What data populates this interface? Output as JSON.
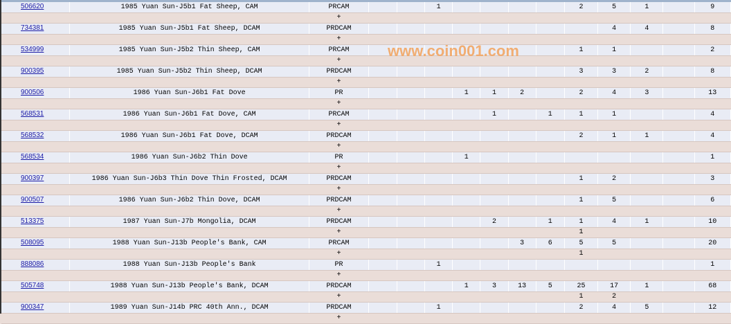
{
  "watermark": "www.coin001.com",
  "plus_label": "+",
  "rows": [
    {
      "id": "506620",
      "desc": "1985 Yuan Sun-J5b1 Fat Sheep, CAM",
      "desig": "PRCAM",
      "grades": [
        null,
        null,
        "1",
        null,
        null,
        null,
        null,
        "2",
        "5",
        "1",
        null
      ],
      "total": "9",
      "plus": []
    },
    {
      "id": "734381",
      "desc": "1985 Yuan Sun-J5b1 Fat Sheep, DCAM",
      "desig": "PRDCAM",
      "grades": [
        null,
        null,
        null,
        null,
        null,
        null,
        null,
        null,
        "4",
        "4",
        null
      ],
      "total": "8",
      "plus": []
    },
    {
      "id": "534999",
      "desc": "1985 Yuan Sun-J5b2 Thin Sheep, CAM",
      "desig": "PRCAM",
      "grades": [
        null,
        null,
        null,
        null,
        null,
        null,
        null,
        "1",
        "1",
        null,
        null
      ],
      "total": "2",
      "plus": []
    },
    {
      "id": "900395",
      "desc": "1985 Yuan Sun-J5b2 Thin Sheep, DCAM",
      "desig": "PRDCAM",
      "grades": [
        null,
        null,
        null,
        null,
        null,
        null,
        null,
        "3",
        "3",
        "2",
        null
      ],
      "total": "8",
      "plus": []
    },
    {
      "id": "900506",
      "desc": "1986 Yuan Sun-J6b1 Fat Dove",
      "desig": "PR",
      "grades": [
        null,
        null,
        null,
        "1",
        "1",
        "2",
        null,
        "2",
        "4",
        "3",
        null
      ],
      "total": "13",
      "plus": []
    },
    {
      "id": "568531",
      "desc": "1986 Yuan Sun-J6b1 Fat Dove, CAM",
      "desig": "PRCAM",
      "grades": [
        null,
        null,
        null,
        null,
        "1",
        null,
        "1",
        "1",
        "1",
        null,
        null
      ],
      "total": "4",
      "plus": []
    },
    {
      "id": "568532",
      "desc": "1986 Yuan Sun-J6b1 Fat Dove, DCAM",
      "desig": "PRDCAM",
      "grades": [
        null,
        null,
        null,
        null,
        null,
        null,
        null,
        "2",
        "1",
        "1",
        null
      ],
      "total": "4",
      "plus": []
    },
    {
      "id": "568534",
      "desc": "1986 Yuan Sun-J6b2 Thin Dove",
      "desig": "PR",
      "grades": [
        null,
        null,
        null,
        "1",
        null,
        null,
        null,
        null,
        null,
        null,
        null
      ],
      "total": "1",
      "plus": []
    },
    {
      "id": "900397",
      "desc": "1986 Yuan Sun-J6b3 Thin Dove Thin Frosted, DCAM",
      "desig": "PRDCAM",
      "grades": [
        null,
        null,
        null,
        null,
        null,
        null,
        null,
        "1",
        "2",
        null,
        null
      ],
      "total": "3",
      "plus": []
    },
    {
      "id": "900507",
      "desc": "1986 Yuan Sun-J6b2 Thin Dove, DCAM",
      "desig": "PRDCAM",
      "grades": [
        null,
        null,
        null,
        null,
        null,
        null,
        null,
        "1",
        "5",
        null,
        null
      ],
      "total": "6",
      "plus": []
    },
    {
      "id": "513375",
      "desc": "1987 Yuan Sun-J7b Mongolia, DCAM",
      "desig": "PRDCAM",
      "grades": [
        null,
        null,
        null,
        null,
        "2",
        null,
        "1",
        "1",
        "4",
        "1",
        null
      ],
      "total": "10",
      "plus": [
        null,
        null,
        null,
        null,
        null,
        null,
        null,
        "1",
        null,
        null,
        null
      ]
    },
    {
      "id": "508095",
      "desc": "1988 Yuan Sun-J13b People's Bank, CAM",
      "desig": "PRCAM",
      "grades": [
        null,
        null,
        null,
        null,
        null,
        "3",
        "6",
        "5",
        "5",
        null,
        null
      ],
      "total": "20",
      "plus": [
        null,
        null,
        null,
        null,
        null,
        null,
        null,
        "1",
        null,
        null,
        null
      ]
    },
    {
      "id": "888086",
      "desc": "1988 Yuan Sun-J13b People's Bank",
      "desig": "PR",
      "grades": [
        null,
        null,
        "1",
        null,
        null,
        null,
        null,
        null,
        null,
        null,
        null
      ],
      "total": "1",
      "plus": []
    },
    {
      "id": "505748",
      "desc": "1988 Yuan Sun-J13b People's Bank, DCAM",
      "desig": "PRDCAM",
      "grades": [
        null,
        null,
        null,
        "1",
        "3",
        "13",
        "5",
        "25",
        "17",
        "1",
        null
      ],
      "total": "68",
      "plus": [
        null,
        null,
        null,
        null,
        null,
        null,
        null,
        "1",
        "2",
        null,
        null
      ]
    },
    {
      "id": "900347",
      "desc": "1989 Yuan Sun-J14b PRC 40th Ann., DCAM",
      "desig": "PRDCAM",
      "grades": [
        null,
        null,
        "1",
        null,
        null,
        null,
        null,
        "2",
        "4",
        "5",
        null
      ],
      "total": "12",
      "plus": []
    }
  ]
}
